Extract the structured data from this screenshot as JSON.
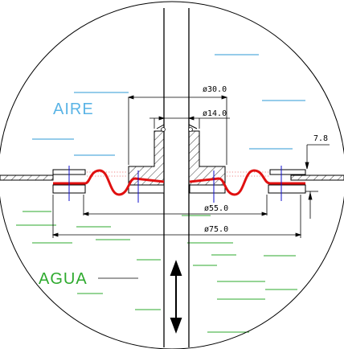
{
  "labels": {
    "air": "AIRE",
    "water": "AGUA"
  },
  "dimensions": {
    "d30": "ø30.0",
    "d14": "ø14.0",
    "h78": "7.8",
    "d55": "ø55.0",
    "d75": "ø75.0"
  },
  "colors": {
    "air_label": "#5ab4e6",
    "water_label": "#2eaa2e",
    "air_hatch": "#2c9ad6",
    "water_hatch": "#2ea82e",
    "membrane": "#e01010",
    "bolt": "#1010cc",
    "line": "#000000"
  }
}
